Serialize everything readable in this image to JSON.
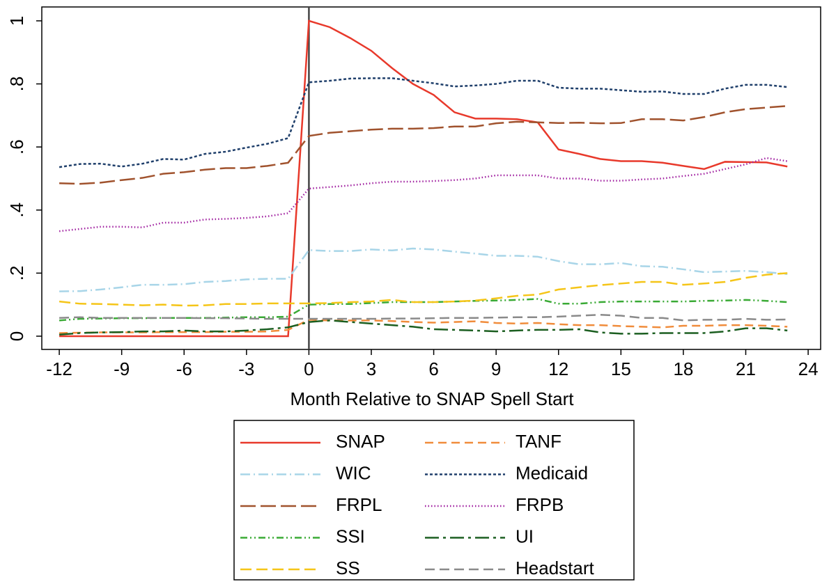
{
  "chart_data": {
    "type": "line",
    "x_label": "Month Relative to SNAP Spell Start",
    "x": [
      -12,
      -11,
      -10,
      -9,
      -8,
      -7,
      -6,
      -5,
      -4,
      -3,
      -2,
      -1,
      0,
      1,
      2,
      3,
      4,
      5,
      6,
      7,
      8,
      9,
      10,
      11,
      12,
      13,
      14,
      15,
      16,
      17,
      18,
      19,
      20,
      21,
      22,
      23
    ],
    "xlim": [
      -12.84,
      24.6
    ],
    "xticks": [
      -12,
      -9,
      -6,
      -3,
      0,
      3,
      6,
      9,
      12,
      15,
      18,
      21,
      24
    ],
    "ylim": [
      -0.042,
      1.044
    ],
    "yticks": [
      0,
      {
        "value": 0.2,
        "label": ".2"
      },
      {
        "value": 0.4,
        "label": ".4"
      },
      {
        "value": 0.6,
        "label": ".6"
      },
      {
        "value": 0.8,
        "label": ".8"
      },
      1
    ],
    "vline": 0,
    "series": [
      {
        "name": "SNAP",
        "color": "#e8392b",
        "values": [
          0,
          0,
          0,
          0,
          0,
          0,
          0,
          0,
          0,
          0,
          0,
          0,
          1.0,
          0.98,
          0.945,
          0.905,
          0.85,
          0.8,
          0.765,
          0.71,
          0.69,
          0.69,
          0.688,
          0.678,
          0.592,
          0.578,
          0.562,
          0.555,
          0.555,
          0.55,
          0.54,
          0.53,
          0.553,
          0.552,
          0.551,
          0.538
        ]
      },
      {
        "name": "TANF",
        "color": "#f08c3b",
        "values": [
          0.01,
          0.011,
          0.012,
          0.012,
          0.012,
          0.013,
          0.013,
          0.013,
          0.014,
          0.014,
          0.015,
          0.02,
          0.052,
          0.05,
          0.05,
          0.05,
          0.048,
          0.045,
          0.043,
          0.045,
          0.047,
          0.042,
          0.04,
          0.042,
          0.038,
          0.035,
          0.035,
          0.032,
          0.03,
          0.028,
          0.033,
          0.033,
          0.035,
          0.035,
          0.033,
          0.03
        ]
      },
      {
        "name": "WIC",
        "color": "#a8d5e8",
        "values": [
          0.142,
          0.143,
          0.148,
          0.155,
          0.163,
          0.163,
          0.165,
          0.172,
          0.175,
          0.18,
          0.182,
          0.182,
          0.273,
          0.27,
          0.27,
          0.275,
          0.272,
          0.278,
          0.275,
          0.268,
          0.262,
          0.255,
          0.255,
          0.252,
          0.238,
          0.228,
          0.228,
          0.232,
          0.222,
          0.22,
          0.212,
          0.203,
          0.205,
          0.207,
          0.203,
          0.197
        ]
      },
      {
        "name": "Medicaid",
        "color": "#1f3f6b",
        "values": [
          0.536,
          0.546,
          0.547,
          0.538,
          0.547,
          0.562,
          0.56,
          0.578,
          0.585,
          0.598,
          0.61,
          0.628,
          0.805,
          0.81,
          0.817,
          0.818,
          0.818,
          0.81,
          0.802,
          0.792,
          0.795,
          0.8,
          0.81,
          0.81,
          0.788,
          0.785,
          0.785,
          0.78,
          0.775,
          0.776,
          0.768,
          0.768,
          0.785,
          0.797,
          0.797,
          0.79
        ]
      },
      {
        "name": "FRPL",
        "color": "#a0522d",
        "values": [
          0.485,
          0.483,
          0.487,
          0.495,
          0.502,
          0.515,
          0.52,
          0.528,
          0.533,
          0.533,
          0.54,
          0.55,
          0.635,
          0.645,
          0.65,
          0.655,
          0.658,
          0.658,
          0.66,
          0.665,
          0.665,
          0.675,
          0.68,
          0.678,
          0.676,
          0.677,
          0.675,
          0.676,
          0.688,
          0.688,
          0.684,
          0.695,
          0.71,
          0.72,
          0.725,
          0.73
        ]
      },
      {
        "name": "FRPB",
        "color": "#a020a0",
        "values": [
          0.333,
          0.34,
          0.347,
          0.347,
          0.345,
          0.36,
          0.36,
          0.37,
          0.372,
          0.375,
          0.38,
          0.39,
          0.468,
          0.473,
          0.478,
          0.485,
          0.49,
          0.49,
          0.492,
          0.495,
          0.5,
          0.51,
          0.51,
          0.51,
          0.5,
          0.5,
          0.493,
          0.493,
          0.497,
          0.5,
          0.508,
          0.515,
          0.53,
          0.545,
          0.565,
          0.555
        ]
      },
      {
        "name": "SSI",
        "color": "#3aaa35",
        "values": [
          0.05,
          0.055,
          0.056,
          0.057,
          0.057,
          0.058,
          0.058,
          0.058,
          0.059,
          0.06,
          0.06,
          0.062,
          0.1,
          0.102,
          0.102,
          0.105,
          0.108,
          0.108,
          0.108,
          0.11,
          0.112,
          0.113,
          0.115,
          0.118,
          0.103,
          0.103,
          0.108,
          0.11,
          0.11,
          0.11,
          0.11,
          0.112,
          0.113,
          0.115,
          0.112,
          0.108
        ]
      },
      {
        "name": "UI",
        "color": "#1b5e20",
        "values": [
          0.005,
          0.01,
          0.012,
          0.013,
          0.015,
          0.015,
          0.018,
          0.015,
          0.015,
          0.018,
          0.022,
          0.028,
          0.045,
          0.05,
          0.045,
          0.04,
          0.035,
          0.03,
          0.022,
          0.02,
          0.018,
          0.015,
          0.018,
          0.02,
          0.02,
          0.022,
          0.012,
          0.008,
          0.008,
          0.01,
          0.01,
          0.01,
          0.015,
          0.025,
          0.025,
          0.018
        ]
      },
      {
        "name": "SS",
        "color": "#f5c518",
        "values": [
          0.11,
          0.103,
          0.102,
          0.1,
          0.098,
          0.1,
          0.097,
          0.098,
          0.102,
          0.102,
          0.104,
          0.104,
          0.104,
          0.105,
          0.108,
          0.11,
          0.115,
          0.108,
          0.108,
          0.11,
          0.113,
          0.12,
          0.128,
          0.132,
          0.148,
          0.155,
          0.162,
          0.167,
          0.172,
          0.172,
          0.163,
          0.167,
          0.172,
          0.185,
          0.195,
          0.2
        ]
      },
      {
        "name": "Headstart",
        "color": "#8a8a8a",
        "values": [
          0.058,
          0.06,
          0.058,
          0.058,
          0.058,
          0.058,
          0.058,
          0.057,
          0.057,
          0.056,
          0.055,
          0.055,
          0.055,
          0.055,
          0.055,
          0.055,
          0.056,
          0.056,
          0.057,
          0.058,
          0.058,
          0.059,
          0.06,
          0.06,
          0.062,
          0.065,
          0.068,
          0.065,
          0.058,
          0.058,
          0.05,
          0.052,
          0.052,
          0.055,
          0.052,
          0.053
        ]
      }
    ]
  }
}
